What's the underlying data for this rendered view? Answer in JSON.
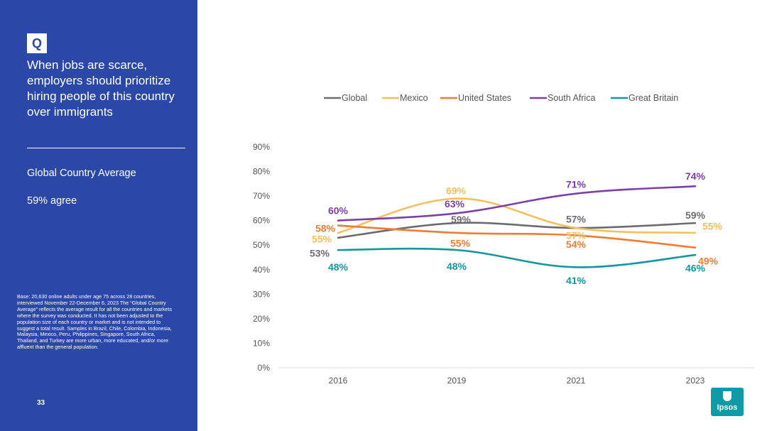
{
  "sidebar": {
    "q_badge": "Q",
    "question": "When jobs are scarce, employers should prioritize hiring people of this country over immigrants",
    "gca_label": "Global Country Average",
    "gca_value": "59% agree",
    "base_note": "Base: 20,630 online adults under age 75 across 28 countries, interviewed November 22-December 6, 2023 The “Global Country Average” reflects the average result for all the countries and markets where the survey was conducted. It has not been adjusted to the population size of each country or market and is not intended to suggest a total result. Samples in Brazil, Chile, Colombia, Indonesia, Malaysia, Mexico, Peru, Philippines, Singapore, South Africa, Thailand, and Turkey are more urban, more educated, and/or more affluent than the general population.",
    "page_number": "33"
  },
  "logo": {
    "text": "Ipsos",
    "color": "#0f9aa7"
  },
  "chart_data": {
    "type": "line",
    "categories": [
      "2016",
      "2019",
      "2021",
      "2023"
    ],
    "ylim": [
      0,
      90
    ],
    "yticks": [
      0,
      10,
      20,
      30,
      40,
      50,
      60,
      70,
      80,
      90
    ],
    "ytick_labels": [
      "0%",
      "10%",
      "20%",
      "30%",
      "40%",
      "50%",
      "60%",
      "70%",
      "80%",
      "90%"
    ],
    "value_suffix": "%",
    "legend_position": "top",
    "grid": false,
    "series": [
      {
        "name": "Global",
        "color": "#6d6a71",
        "values": [
          53,
          59,
          57,
          59
        ]
      },
      {
        "name": "Mexico",
        "color": "#f5c05c",
        "values": [
          55,
          69,
          57,
          55
        ]
      },
      {
        "name": "United States",
        "color": "#ee7d31",
        "values": [
          58,
          55,
          54,
          49
        ]
      },
      {
        "name": "South Africa",
        "color": "#7d3fa8",
        "values": [
          60,
          63,
          71,
          74
        ]
      },
      {
        "name": "Great Britain",
        "color": "#13979f",
        "values": [
          48,
          48,
          41,
          46
        ]
      }
    ]
  }
}
